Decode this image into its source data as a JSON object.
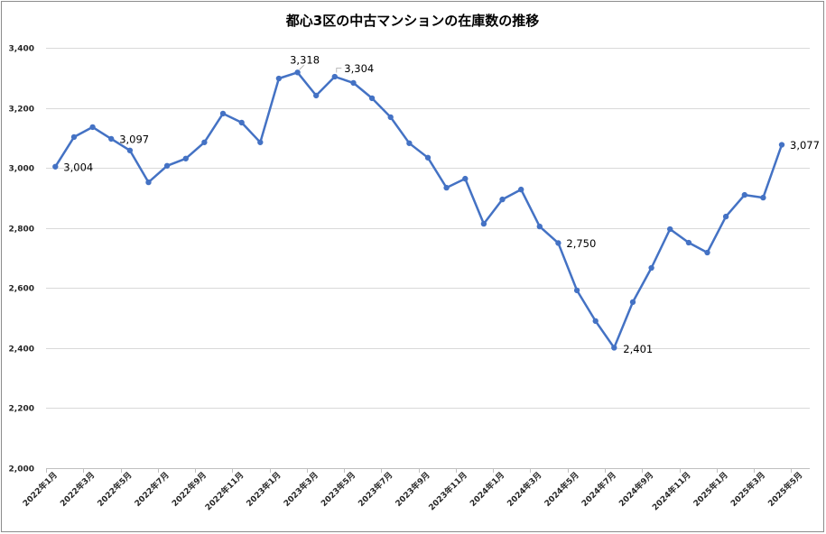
{
  "chart_data": {
    "type": "line",
    "title": "都心3区の中古マンションの在庫数の推移",
    "x_tick_labels": [
      "2022年1月",
      "2022年3月",
      "2022年5月",
      "2022年7月",
      "2022年9月",
      "2022年11月",
      "2023年1月",
      "2023年3月",
      "2023年5月",
      "2023年7月",
      "2023年9月",
      "2023年11月",
      "2024年1月",
      "2024年3月",
      "2024年5月",
      "2024年7月",
      "2024年9月",
      "2024年11月",
      "2025年1月",
      "2025年3月",
      "2025年5月"
    ],
    "values": [
      3004,
      3103,
      3136,
      3097,
      3058,
      2952,
      3007,
      3031,
      3085,
      3181,
      3151,
      3085,
      3298,
      3318,
      3241,
      3304,
      3283,
      3232,
      3169,
      3082,
      3034,
      2934,
      2964,
      2814,
      2895,
      2928,
      2805,
      2750,
      2592,
      2490,
      2401,
      2553,
      2667,
      2796,
      2751,
      2718,
      2838,
      2910,
      2901,
      3077,
      null
    ],
    "ylim": [
      2000,
      3400
    ],
    "y_tick_labels": [
      "2,000",
      "2,200",
      "2,400",
      "2,600",
      "2,800",
      "3,000",
      "3,200",
      "3,400"
    ],
    "data_labels": [
      {
        "index": 0,
        "text": "3,004"
      },
      {
        "index": 3,
        "text": "3,097"
      },
      {
        "index": 13,
        "text": "3,318"
      },
      {
        "index": 15,
        "text": "3,304"
      },
      {
        "index": 27,
        "text": "2,750"
      },
      {
        "index": 30,
        "text": "2,401"
      },
      {
        "index": 39,
        "text": "3,077"
      }
    ],
    "grid": true,
    "markers": true,
    "colors": {
      "line": "#4472C4"
    }
  }
}
